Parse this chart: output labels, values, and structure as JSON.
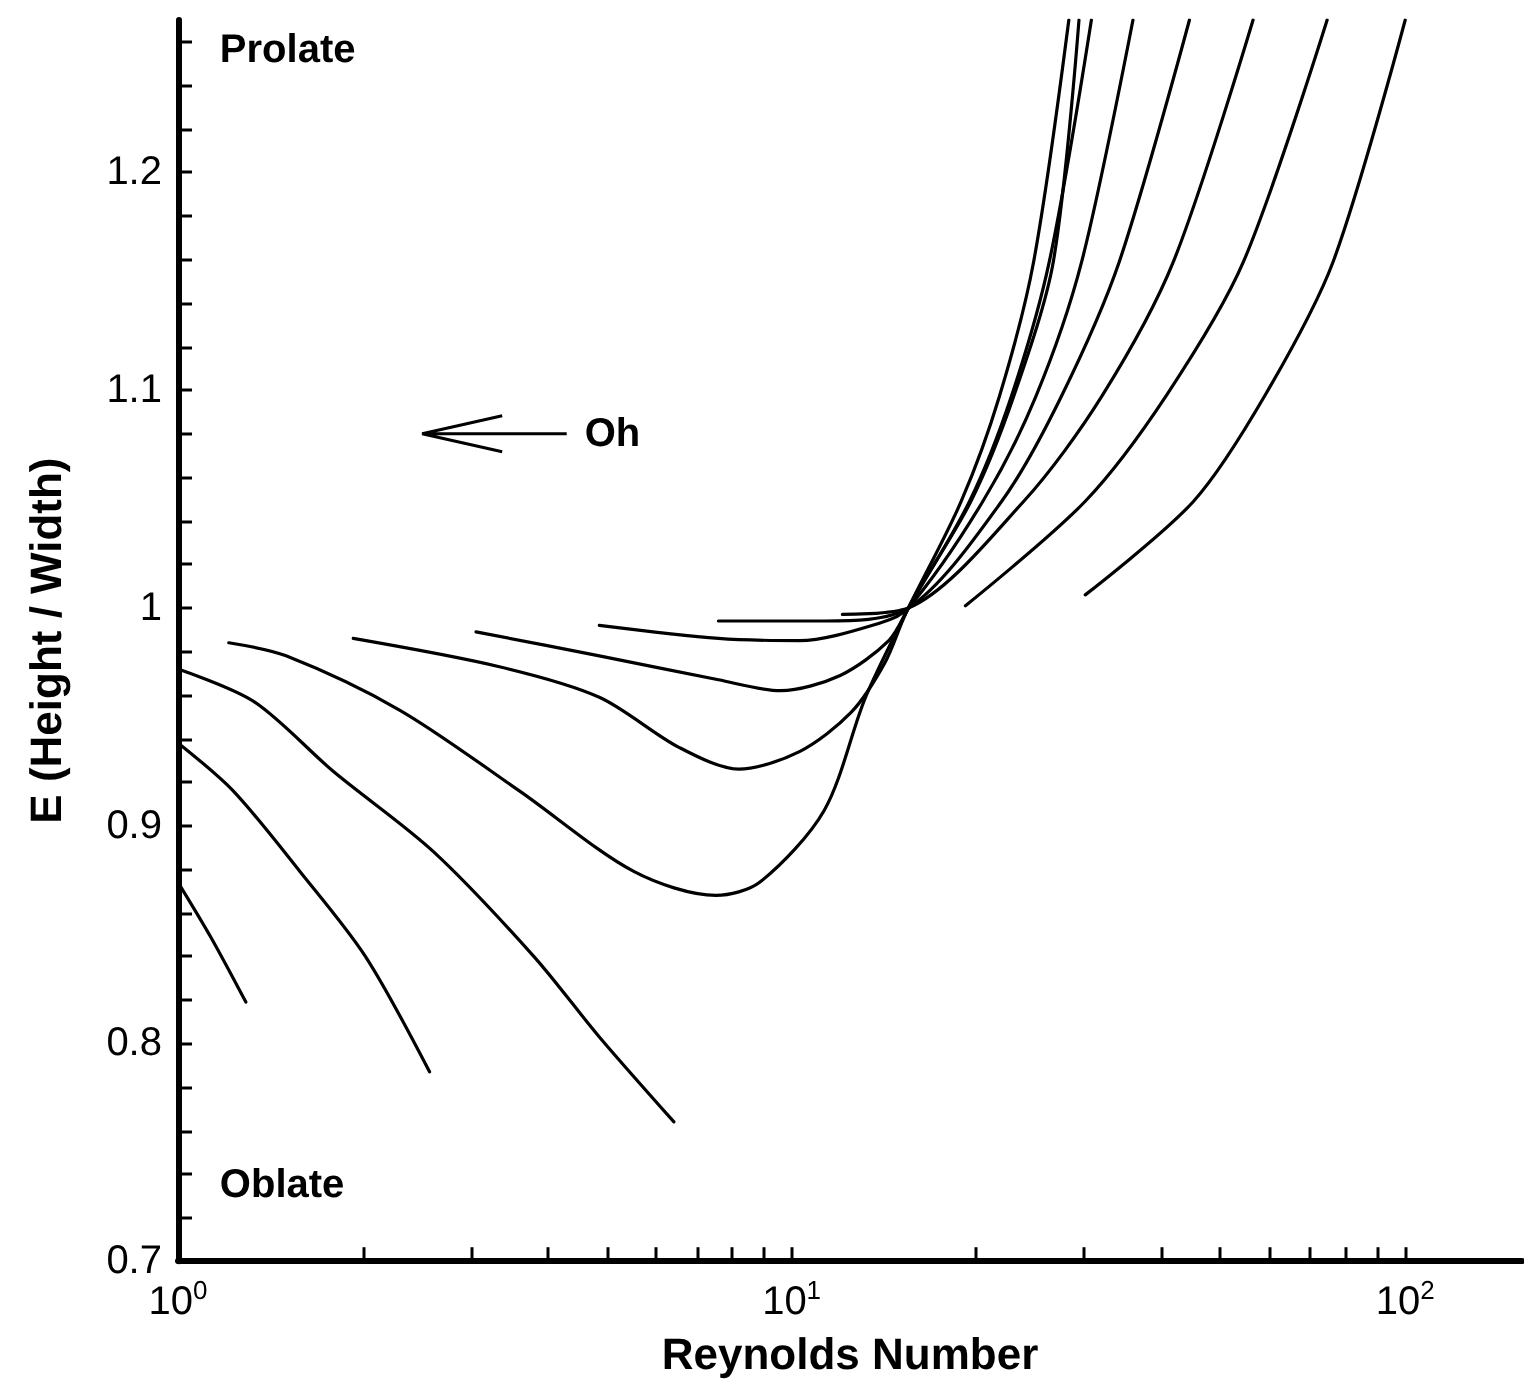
{
  "chart_data": {
    "type": "line",
    "xlabel": "Reynolds Number",
    "ylabel": "E (Height / Width)",
    "annotations": [
      "Prolate",
      "Oblate",
      "Oh"
    ],
    "log": "x",
    "grid": false,
    "marker": "none",
    "line_style": "solid",
    "xlim": [
      1,
      155
    ],
    "ylim": [
      0.7,
      1.27
    ],
    "xticks": [
      {
        "value": 1,
        "label": "10$^{0}$"
      },
      {
        "value": 2,
        "label": null
      },
      {
        "value": 3,
        "label": null
      },
      {
        "value": 4,
        "label": null
      },
      {
        "value": 5,
        "label": null
      },
      {
        "value": 6,
        "label": null
      },
      {
        "value": 7,
        "label": null
      },
      {
        "value": 8,
        "label": null
      },
      {
        "value": 9,
        "label": null
      },
      {
        "value": 10,
        "label": "10$^{1}$"
      },
      {
        "value": 20,
        "label": null
      },
      {
        "value": 30,
        "label": null
      },
      {
        "value": 40,
        "label": null
      },
      {
        "value": 50,
        "label": null
      },
      {
        "value": 60,
        "label": null
      },
      {
        "value": 70,
        "label": null
      },
      {
        "value": 80,
        "label": null
      },
      {
        "value": 90,
        "label": null
      },
      {
        "value": 100,
        "label": "10$^{2}$"
      }
    ],
    "yticks": [
      0.7,
      {
        "value": 0.72,
        "label": null
      },
      {
        "value": 0.74,
        "label": null
      },
      {
        "value": 0.76,
        "label": null
      },
      {
        "value": 0.78,
        "label": null
      },
      0.8,
      {
        "value": 0.82,
        "label": null
      },
      {
        "value": 0.84,
        "label": null
      },
      {
        "value": 0.86,
        "label": null
      },
      {
        "value": 0.88,
        "label": null
      },
      0.9,
      {
        "value": 0.92,
        "label": null
      },
      {
        "value": 0.94,
        "label": null
      },
      {
        "value": 0.96,
        "label": null
      },
      {
        "value": 0.98,
        "label": null
      },
      1,
      {
        "value": 1.02,
        "label": null
      },
      {
        "value": 1.04,
        "label": null
      },
      {
        "value": 1.06,
        "label": null
      },
      {
        "value": 1.08,
        "label": null
      },
      1.1,
      {
        "value": 1.12,
        "label": null
      },
      {
        "value": 1.14,
        "label": null
      },
      {
        "value": 1.16,
        "label": null
      },
      {
        "value": 1.18,
        "label": null
      },
      1.2,
      {
        "value": 1.22,
        "label": null
      },
      {
        "value": 1.24,
        "label": null
      },
      {
        "value": 1.26,
        "label": null
      }
    ],
    "series": [
      {
        "color": "#000000",
        "x": [
          1,
          1.13,
          1.29
        ],
        "values": [
          0.874,
          0.849,
          0.819
        ]
      },
      {
        "color": "#000000",
        "x": [
          1,
          1.23,
          1.58,
          2.02,
          2.57
        ],
        "values": [
          0.938,
          0.916,
          0.879,
          0.84,
          0.787
        ]
      },
      {
        "color": "#000000",
        "x": [
          1,
          1.33,
          1.79,
          2.61,
          3.8,
          4.86,
          6.43
        ],
        "values": [
          0.972,
          0.957,
          0.925,
          0.888,
          0.84,
          0.803,
          0.764
        ]
      },
      {
        "color": "#000000",
        "x": [
          1.21,
          1.5,
          2.3,
          3.6,
          5.53,
          7.53,
          8.87,
          11.3,
          13.2,
          15.5,
          18.9,
          21.8,
          24.8,
          28.3
        ],
        "values": [
          0.984,
          0.978,
          0.953,
          0.916,
          0.879,
          0.868,
          0.874,
          0.907,
          0.959,
          1.0,
          1.049,
          1.097,
          1.159,
          1.27
        ]
      },
      {
        "color": "#000000",
        "x": [
          1.93,
          3.34,
          4.86,
          6.55,
          8.2,
          10.3,
          12.5,
          14.2,
          15.5,
          19.6,
          23,
          26.7,
          29.4
        ],
        "values": [
          0.986,
          0.973,
          0.959,
          0.936,
          0.926,
          0.934,
          0.952,
          0.975,
          1.0,
          1.049,
          1.097,
          1.159,
          1.27
        ]
      },
      {
        "color": "#000000",
        "x": [
          3.06,
          4.86,
          7.6,
          9.6,
          12,
          14.4,
          15.5,
          19.5,
          22.8,
          26.3,
          30.8
        ],
        "values": [
          0.989,
          0.978,
          0.967,
          0.962,
          0.969,
          0.985,
          1.0,
          1.049,
          1.097,
          1.159,
          1.27
        ]
      },
      {
        "color": "#000000",
        "x": [
          4.86,
          7.6,
          10.3,
          13.9,
          15.5,
          20.5,
          25,
          29.7,
          36
        ],
        "values": [
          0.992,
          0.986,
          0.985,
          0.993,
          1.0,
          1.049,
          1.097,
          1.159,
          1.27
        ]
      },
      {
        "color": "#000000",
        "x": [
          7.6,
          11.3,
          15.5,
          22,
          27.5,
          34.2,
          44.5
        ],
        "values": [
          0.994,
          0.994,
          1.0,
          1.049,
          1.097,
          1.159,
          1.27
        ]
      },
      {
        "color": "#000000",
        "x": [
          12.1,
          15.5,
          23.9,
          32,
          41.9,
          56.5
        ],
        "values": [
          0.997,
          1.0,
          1.049,
          1.097,
          1.159,
          1.27
        ]
      },
      {
        "color": "#000000",
        "x": [
          19.2,
          30.1,
          40.9,
          54.5,
          74.6
        ],
        "values": [
          1.001,
          1.049,
          1.098,
          1.159,
          1.27
        ]
      },
      {
        "color": "#000000",
        "x": [
          30.1,
          45.2,
          59.2,
          76.3,
          100
        ],
        "values": [
          1.006,
          1.049,
          1.098,
          1.159,
          1.27
        ]
      }
    ]
  }
}
